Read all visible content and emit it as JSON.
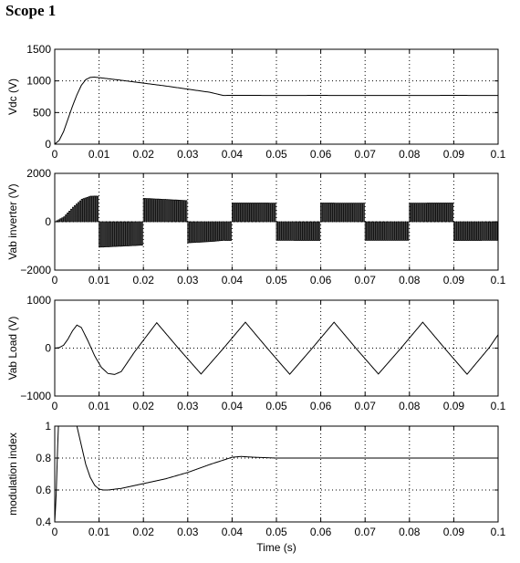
{
  "window": {
    "title": "Scope 1"
  },
  "style": {
    "line_color": "#000000",
    "grid_color": "#000000",
    "background": "#ffffff"
  },
  "chart_data": [
    {
      "id": "vdc",
      "type": "line",
      "ylabel": "Vdc  (V)",
      "xlabel": "",
      "xlim": [
        0,
        0.1
      ],
      "ylim": [
        0,
        1500
      ],
      "xticks": [
        0,
        0.01,
        0.02,
        0.03,
        0.04,
        0.05,
        0.06,
        0.07,
        0.08,
        0.09,
        0.1
      ],
      "xtick_labels": [
        "0",
        "0.01",
        "0.02",
        "0.03",
        "0.04",
        "0.05",
        "0.06",
        "0.07",
        "0.08",
        "0.09",
        "0.1"
      ],
      "yticks": [
        0,
        500,
        1000,
        1500
      ],
      "ytick_labels": [
        "0",
        "500",
        "1000",
        "1500"
      ],
      "grid": true,
      "series": [
        {
          "x": [
            0,
            0.001,
            0.002,
            0.003,
            0.004,
            0.005,
            0.006,
            0.007,
            0.008,
            0.009,
            0.012,
            0.015,
            0.02,
            0.025,
            0.03,
            0.035,
            0.038,
            0.04,
            0.05,
            0.06,
            0.07,
            0.08,
            0.09,
            0.1
          ],
          "y": [
            0,
            60,
            200,
            400,
            600,
            780,
            930,
            1020,
            1055,
            1060,
            1035,
            1010,
            965,
            920,
            870,
            820,
            770,
            772,
            770,
            771,
            769,
            770,
            771,
            770
          ]
        }
      ]
    },
    {
      "id": "vab-inverter",
      "type": "line",
      "ylabel": "Vab inverter  (V)",
      "xlabel": "",
      "xlim": [
        0,
        0.1
      ],
      "ylim": [
        -2000,
        2000
      ],
      "xticks": [
        0,
        0.01,
        0.02,
        0.03,
        0.04,
        0.05,
        0.06,
        0.07,
        0.08,
        0.09,
        0.1
      ],
      "xtick_labels": [
        "0",
        "0.01",
        "0.02",
        "0.03",
        "0.04",
        "0.05",
        "0.06",
        "0.07",
        "0.08",
        "0.09",
        "0.1"
      ],
      "yticks": [
        -2000,
        0,
        2000
      ],
      "ytick_labels": [
        "−2000",
        "0",
        "2000"
      ],
      "grid": true,
      "pwm": {
        "period": 0.02,
        "pulse_step": 0.0004,
        "first_half_start": 0.0
      },
      "envelope": {
        "x": [
          0,
          0.002,
          0.004,
          0.006,
          0.008,
          0.009,
          0.012,
          0.015,
          0.02,
          0.025,
          0.03,
          0.035,
          0.038,
          0.04,
          0.05,
          0.06,
          0.07,
          0.08,
          0.09,
          0.1
        ],
        "y": [
          0,
          200,
          600,
          930,
          1055,
          1060,
          1035,
          1010,
          965,
          920,
          870,
          820,
          770,
          772,
          770,
          771,
          769,
          770,
          771,
          770
        ]
      }
    },
    {
      "id": "vab-load",
      "type": "line",
      "ylabel": "Vab Load  (V)",
      "xlabel": "",
      "xlim": [
        0,
        0.1
      ],
      "ylim": [
        -1000,
        1000
      ],
      "xticks": [
        0,
        0.01,
        0.02,
        0.03,
        0.04,
        0.05,
        0.06,
        0.07,
        0.08,
        0.09,
        0.1
      ],
      "xtick_labels": [
        "0",
        "0.01",
        "0.02",
        "0.03",
        "0.04",
        "0.05",
        "0.06",
        "0.07",
        "0.08",
        "0.09",
        "0.1"
      ],
      "yticks": [
        -1000,
        0,
        1000
      ],
      "ytick_labels": [
        "−1000",
        "0",
        "1000"
      ],
      "grid": true,
      "series": [
        {
          "x": [
            0,
            0.001,
            0.002,
            0.003,
            0.004,
            0.005,
            0.006,
            0.0075,
            0.009,
            0.0105,
            0.012,
            0.0135,
            0.015,
            0.018,
            0.023,
            0.028,
            0.033,
            0.038,
            0.043,
            0.048,
            0.053,
            0.058,
            0.063,
            0.068,
            0.073,
            0.078,
            0.083,
            0.088,
            0.093,
            0.098,
            0.1
          ],
          "y": [
            0,
            10,
            60,
            190,
            360,
            480,
            430,
            150,
            -160,
            -400,
            -530,
            -550,
            -490,
            -80,
            530,
            -15,
            -540,
            -10,
            540,
            -10,
            -545,
            -10,
            540,
            -10,
            -540,
            -10,
            540,
            -10,
            -545,
            10,
            280
          ]
        }
      ]
    },
    {
      "id": "modulation-index",
      "type": "line",
      "ylabel": "modulation index",
      "xlabel": "Time (s)",
      "xlim": [
        0,
        0.1
      ],
      "ylim": [
        0.4,
        1
      ],
      "xticks": [
        0,
        0.01,
        0.02,
        0.03,
        0.04,
        0.05,
        0.06,
        0.07,
        0.08,
        0.09,
        0.1
      ],
      "xtick_labels": [
        "0",
        "0.01",
        "0.02",
        "0.03",
        "0.04",
        "0.05",
        "0.06",
        "0.07",
        "0.08",
        "0.09",
        "0.1"
      ],
      "yticks": [
        0.4,
        0.6,
        0.8,
        1
      ],
      "ytick_labels": [
        "0.4",
        "0.6",
        "0.8",
        "1"
      ],
      "grid": true,
      "series": [
        {
          "x": [
            0,
            0.0003,
            0.0008,
            0.001,
            0.005,
            0.006,
            0.007,
            0.008,
            0.009,
            0.01,
            0.011,
            0.012,
            0.015,
            0.02,
            0.025,
            0.03,
            0.035,
            0.04,
            0.042,
            0.045,
            0.05,
            0.06,
            0.07,
            0.08,
            0.09,
            0.1
          ],
          "y": [
            0.4,
            0.55,
            1,
            1,
            1,
            0.88,
            0.76,
            0.68,
            0.63,
            0.605,
            0.6,
            0.6,
            0.61,
            0.64,
            0.67,
            0.71,
            0.76,
            0.805,
            0.81,
            0.805,
            0.8,
            0.8,
            0.8,
            0.8,
            0.8,
            0.8
          ]
        }
      ]
    }
  ]
}
